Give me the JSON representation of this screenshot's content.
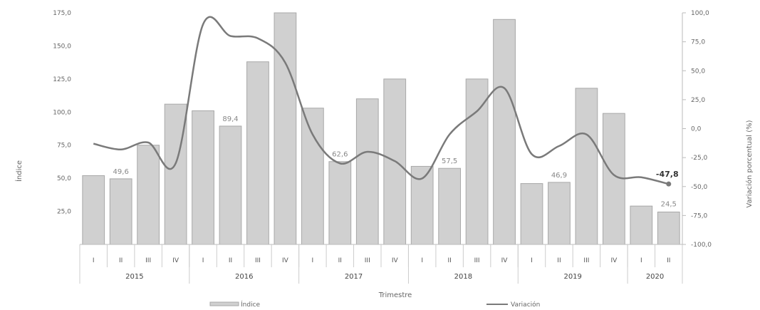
{
  "chart_data": {
    "type": "bar",
    "xlabel": "Trimestre",
    "ylabel": "Índice",
    "y2label": "Variación porcentual (%)",
    "ylim": [
      0,
      175
    ],
    "y2lim": [
      -100,
      100
    ],
    "y_ticks": [
      "25,0",
      "50,0",
      "75,0",
      "100,0",
      "125,0",
      "150,0",
      "175,0"
    ],
    "y2_ticks": [
      "-100,0",
      "-75,0",
      "-50,0",
      "-25,0",
      "0,0",
      "25,0",
      "50,0",
      "75,0",
      "100,0"
    ],
    "quarters": [
      "I",
      "II",
      "III",
      "IV",
      "I",
      "II",
      "III",
      "IV",
      "I",
      "II",
      "III",
      "IV",
      "I",
      "II",
      "III",
      "IV",
      "I",
      "II",
      "III",
      "IV",
      "I",
      "II"
    ],
    "years": [
      {
        "label": "2015",
        "count": 4
      },
      {
        "label": "2016",
        "count": 4
      },
      {
        "label": "2017",
        "count": 4
      },
      {
        "label": "2018",
        "count": 4
      },
      {
        "label": "2019",
        "count": 4
      },
      {
        "label": "2020",
        "count": 2
      }
    ],
    "series": [
      {
        "name": "Índice",
        "type": "bar",
        "values": [
          52,
          49.6,
          75,
          106,
          101,
          89.4,
          138,
          175,
          103,
          62.6,
          110,
          125,
          59,
          57.5,
          125,
          170,
          46,
          46.9,
          118,
          99,
          29,
          24.5
        ]
      },
      {
        "name": "Variación",
        "type": "line",
        "axis": "right",
        "values": [
          -13,
          -18,
          -12,
          -30,
          90,
          80,
          78,
          57,
          -5,
          -30,
          -20,
          -28,
          -43,
          -5,
          15,
          35,
          -22,
          -15,
          -5,
          -40,
          -42,
          -47.8
        ]
      }
    ],
    "data_labels": [
      {
        "index": 1,
        "text": "49,6",
        "series": "bar"
      },
      {
        "index": 5,
        "text": "89,4",
        "series": "bar"
      },
      {
        "index": 9,
        "text": "62,6",
        "series": "bar"
      },
      {
        "index": 13,
        "text": "57,5",
        "series": "bar"
      },
      {
        "index": 17,
        "text": "46,9",
        "series": "bar"
      },
      {
        "index": 21,
        "text": "24,5",
        "series": "bar"
      },
      {
        "index": 21,
        "text": "-47,8",
        "series": "line"
      }
    ],
    "legend": [
      "Índice",
      "Variación"
    ],
    "legend_position": "bottom",
    "colors": {
      "bar_fill": "#d0d0d0",
      "bar_stroke": "#a8a8a8",
      "line": "#7a7a7a",
      "grid": "#e6e6e6"
    }
  }
}
